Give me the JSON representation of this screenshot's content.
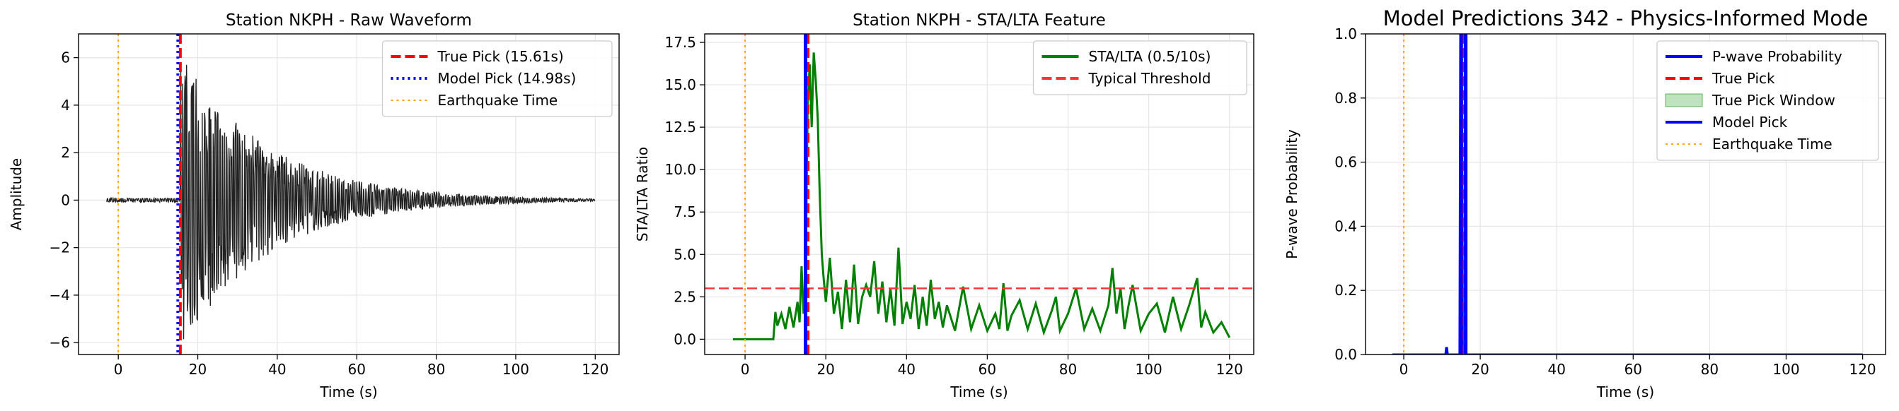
{
  "chart_data": [
    {
      "type": "line",
      "title": "Station NKPH - Raw Waveform",
      "xlabel": "Time (s)",
      "ylabel": "Amplitude",
      "xlim": [
        -10,
        126
      ],
      "ylim": [
        -6.5,
        7
      ],
      "xticks": [
        0,
        20,
        40,
        60,
        80,
        100,
        120
      ],
      "yticks": [
        -6,
        -4,
        -2,
        0,
        2,
        4,
        6
      ],
      "grid": true,
      "legend_position": "top-right",
      "series": [
        {
          "name": "",
          "kind": "waveform",
          "color": "#222222",
          "x_range": [
            -3,
            120
          ],
          "noise_before": 0.08,
          "onset": 15.6,
          "peak_amplitude": 6.3,
          "decay_end": 120
        }
      ],
      "vlines": [
        {
          "name": "True Pick (15.61s)",
          "x": 15.61,
          "color": "#ff0000",
          "style": "dashed",
          "legend": true
        },
        {
          "name": "Model Pick (14.98s)",
          "x": 14.98,
          "color": "#0000ff",
          "style": "dotted",
          "legend": true
        },
        {
          "name": "Earthquake Time",
          "x": 0,
          "color": "#ffa500",
          "style": "dotted",
          "legend": true
        }
      ]
    },
    {
      "type": "line",
      "title": "Station NKPH - STA/LTA Feature",
      "xlabel": "Time (s)",
      "ylabel": "STA/LTA Ratio",
      "xlim": [
        -10,
        126
      ],
      "ylim": [
        -0.9,
        18
      ],
      "xticks": [
        0,
        20,
        40,
        60,
        80,
        100,
        120
      ],
      "yticks": [
        0.0,
        2.5,
        5.0,
        7.5,
        10.0,
        12.5,
        15.0,
        17.5
      ],
      "ytick_labels": [
        "0.0",
        "2.5",
        "5.0",
        "7.5",
        "10.0",
        "12.5",
        "15.0",
        "17.5"
      ],
      "grid": true,
      "legend_position": "top-right",
      "series": [
        {
          "name": "STA/LTA (0.5/10s)",
          "color": "#008000",
          "x": [
            -3,
            7,
            7.5,
            8,
            9,
            10,
            11,
            12,
            13,
            13.5,
            14,
            14.5,
            15,
            15.5,
            16,
            16.5,
            17,
            17.5,
            18,
            18.5,
            19,
            19.5,
            20,
            21,
            22,
            23,
            24,
            25,
            26,
            27,
            28,
            29,
            30,
            31,
            32,
            33,
            34,
            35,
            36,
            37,
            38,
            39,
            40,
            41,
            42,
            43,
            44,
            45,
            46,
            47,
            48,
            49,
            50,
            52,
            54,
            56,
            58,
            60,
            62,
            63,
            64,
            65,
            66,
            68,
            70,
            72,
            74,
            76,
            77,
            78,
            80,
            82,
            84,
            86,
            88,
            90,
            91,
            92,
            93,
            94,
            95,
            96,
            98,
            100,
            102,
            104,
            106,
            108,
            110,
            112,
            113,
            114,
            116,
            118,
            120
          ],
          "y": [
            0.0,
            0.0,
            1.6,
            0.8,
            1.5,
            0.6,
            1.9,
            0.7,
            2.2,
            1.0,
            4.3,
            1.5,
            3.8,
            13.8,
            16.2,
            12.5,
            16.9,
            15.3,
            13.0,
            8.5,
            5.0,
            3.5,
            2.2,
            4.8,
            1.5,
            2.8,
            0.6,
            3.5,
            1.0,
            4.4,
            0.9,
            2.5,
            3.2,
            2.5,
            4.6,
            1.5,
            3.4,
            1.0,
            3.0,
            0.8,
            5.4,
            0.9,
            2.2,
            1.2,
            3.2,
            0.6,
            2.5,
            0.8,
            3.5,
            1.2,
            2.2,
            0.7,
            2.0,
            0.5,
            3.1,
            0.6,
            2.0,
            0.5,
            1.5,
            0.6,
            3.3,
            0.5,
            1.4,
            2.3,
            0.6,
            2.1,
            0.4,
            1.7,
            2.5,
            0.5,
            1.5,
            3.0,
            0.6,
            1.8,
            0.5,
            2.0,
            4.2,
            1.5,
            3.0,
            0.6,
            2.0,
            3.2,
            0.5,
            1.5,
            2.1,
            0.4,
            2.5,
            0.6,
            2.0,
            3.6,
            0.7,
            1.6,
            0.4,
            1.0,
            0.1
          ]
        }
      ],
      "hlines": [
        {
          "name": "Typical Threshold",
          "y": 3.0,
          "color": "#ff3333",
          "style": "dashed",
          "legend": true
        }
      ],
      "vlines": [
        {
          "name": "",
          "x": 15.61,
          "color": "#ff0000",
          "style": "dashed",
          "legend": false
        },
        {
          "name": "",
          "x": 14.98,
          "color": "#0000ff",
          "style": "solid",
          "legend": false
        },
        {
          "name": "",
          "x": 0,
          "color": "#ffa500",
          "style": "dotted",
          "legend": false
        }
      ]
    },
    {
      "type": "line",
      "title": "Model Predictions 342 - Physics-Informed Mode",
      "xlabel": "Time (s)",
      "ylabel": "P-wave Probability",
      "xlim": [
        -10,
        126
      ],
      "ylim": [
        0,
        1
      ],
      "xticks": [
        0,
        20,
        40,
        60,
        80,
        100,
        120
      ],
      "yticks": [
        0.0,
        0.2,
        0.4,
        0.6,
        0.8,
        1.0
      ],
      "ytick_labels": [
        "0.0",
        "0.2",
        "0.4",
        "0.6",
        "0.8",
        "1.0"
      ],
      "grid": true,
      "legend_position": "top-right",
      "series": [
        {
          "name": "P-wave Probability",
          "color": "#0000ff",
          "x": [
            -3,
            10.9,
            11.1,
            11.3,
            11.5,
            14.6,
            14.8,
            15.2,
            15.4,
            120
          ],
          "y": [
            0.0,
            0.0,
            0.02,
            0.02,
            0.0,
            0.0,
            1.0,
            1.0,
            0.0,
            0.0
          ]
        }
      ],
      "spans": [
        {
          "name": "True Pick Window",
          "x0": 15.11,
          "x1": 16.11,
          "color": "#2ca02c",
          "alpha": 0.3,
          "legend": true
        }
      ],
      "vlines": [
        {
          "name": "True Pick",
          "x": 15.61,
          "color": "#ff0000",
          "style": "dashed",
          "legend": true
        },
        {
          "name": "Model Pick",
          "x": 14.98,
          "color": "#0000ff",
          "style": "solid",
          "legend": true
        },
        {
          "name": "",
          "x": 16.2,
          "color": "#0000ff",
          "style": "solid",
          "legend": false
        },
        {
          "name": "Earthquake Time",
          "x": 0,
          "color": "#ffa500",
          "style": "dotted",
          "legend": true
        }
      ],
      "legend_order": [
        "P-wave Probability",
        "True Pick",
        "True Pick Window",
        "Model Pick",
        "Earthquake Time"
      ]
    }
  ]
}
